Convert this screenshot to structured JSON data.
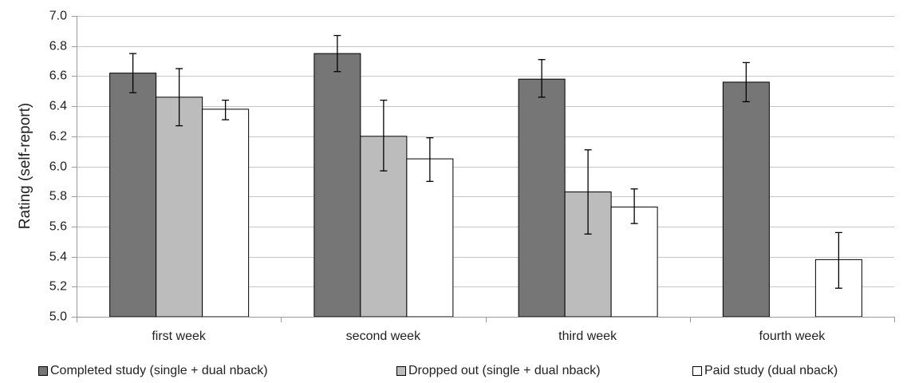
{
  "chart_data": {
    "type": "bar",
    "title": "",
    "xlabel": "",
    "ylabel": "Rating (self-report)",
    "ylim": [
      5.0,
      7.0
    ],
    "yticks": [
      5.0,
      5.2,
      5.4,
      5.6,
      5.8,
      6.0,
      6.2,
      6.4,
      6.6,
      6.8,
      7.0
    ],
    "ytick_labels": [
      "5.0",
      "5.2",
      "5.4",
      "5.6",
      "5.8",
      "6.0",
      "6.2",
      "6.4",
      "6.6",
      "6.8",
      "7.0"
    ],
    "grid": true,
    "legend_position": "bottom",
    "categories": [
      "first week",
      "second week",
      "third week",
      "fourth week"
    ],
    "series": [
      {
        "name": "Completed study (single + dual nback)",
        "color": "#767676",
        "values": [
          6.62,
          6.75,
          6.58,
          6.56
        ],
        "err_low": [
          6.49,
          6.63,
          6.46,
          6.43
        ],
        "err_high": [
          6.75,
          6.87,
          6.71,
          6.69
        ]
      },
      {
        "name": "Dropped out (single + dual nback)",
        "color": "#bcbcbc",
        "values": [
          6.46,
          6.2,
          5.83,
          null
        ],
        "err_low": [
          6.27,
          5.97,
          5.55,
          null
        ],
        "err_high": [
          6.65,
          6.44,
          6.11,
          null
        ]
      },
      {
        "name": "Paid study (dual nback)",
        "color": "#ffffff",
        "values": [
          6.38,
          6.05,
          5.73,
          5.38
        ],
        "err_low": [
          6.31,
          5.9,
          5.62,
          5.19
        ],
        "err_high": [
          6.44,
          6.19,
          5.85,
          5.56
        ]
      }
    ]
  }
}
